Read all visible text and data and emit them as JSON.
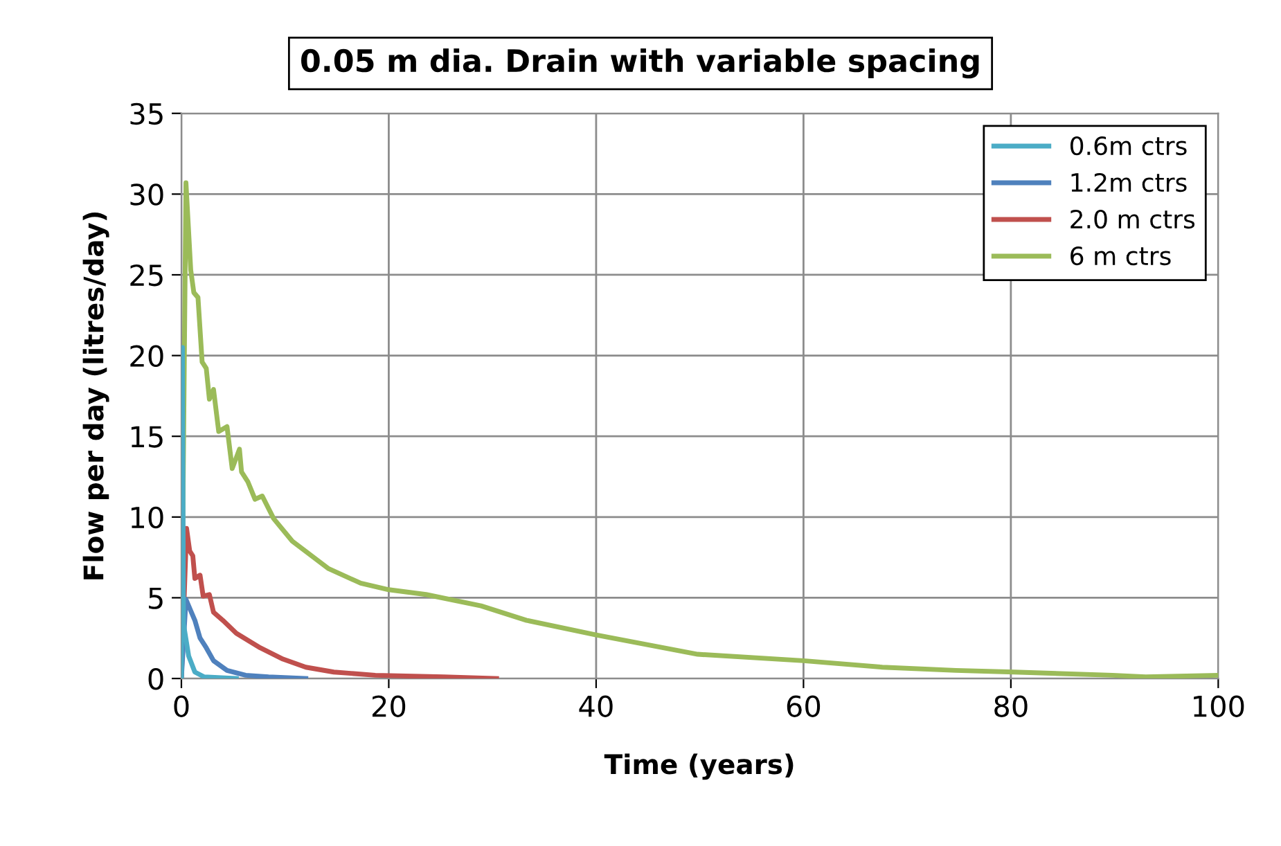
{
  "chart_data": {
    "type": "line",
    "title": "0.05 m dia. Drain with variable spacing",
    "xlabel": "Time (years)",
    "ylabel": "Flow per day (litres/day)",
    "xlim": [
      0,
      100
    ],
    "xticks": [
      0,
      20,
      40,
      60,
      80,
      100
    ],
    "ylim": [
      0,
      35
    ],
    "yticks": [
      0,
      5,
      10,
      15,
      20,
      25,
      30,
      35
    ],
    "grid": true,
    "legend": "top right",
    "marker": "none",
    "line_style": "solid",
    "series": [
      {
        "name": "0.6m ctrs",
        "color": "#4bacc6",
        "x": [
          0,
          0.1,
          0.2,
          0.7,
          1.3,
          2.2,
          5.3
        ],
        "values": [
          0,
          20.5,
          3.4,
          1.4,
          0.4,
          0.1,
          0
        ]
      },
      {
        "name": "1.2m ctrs",
        "color": "#4f81bd",
        "x": [
          0,
          0.44,
          0.9,
          1.3,
          1.8,
          2.4,
          3.1,
          4.4,
          6.2,
          8.4,
          12
        ],
        "values": [
          0,
          4.9,
          4.2,
          3.6,
          2.5,
          1.9,
          1.1,
          0.5,
          0.2,
          0.1,
          0
        ]
      },
      {
        "name": "2.0 m ctrs",
        "color": "#c0504d",
        "x": [
          0,
          0.5,
          0.8,
          1.1,
          1.3,
          1.8,
          2.1,
          2.7,
          3.1,
          4.0,
          5.3,
          7.6,
          9.8,
          12,
          14.7,
          18.7,
          25.3,
          30.4
        ],
        "values": [
          0,
          9.3,
          7.9,
          7.6,
          6.2,
          6.4,
          5.1,
          5.2,
          4.1,
          3.6,
          2.8,
          1.9,
          1.2,
          0.7,
          0.4,
          0.2,
          0.1,
          0
        ]
      },
      {
        "name": "6 m ctrs",
        "color": "#9bbb59",
        "x": [
          0,
          0.44,
          0.9,
          1.2,
          1.6,
          2.0,
          2.4,
          2.7,
          3.1,
          3.6,
          4.4,
          4.9,
          5.6,
          5.8,
          6.4,
          7.1,
          7.8,
          8.9,
          10.7,
          14.2,
          17.3,
          20,
          23.6,
          28.9,
          33.3,
          40,
          49.8,
          60,
          67.6,
          74.7,
          80.3,
          89.8,
          93,
          100
        ],
        "values": [
          0,
          30.7,
          25.3,
          23.9,
          23.6,
          19.6,
          19.2,
          17.3,
          17.9,
          15.3,
          15.6,
          13.0,
          14.2,
          12.8,
          12.2,
          11.1,
          11.3,
          9.9,
          8.5,
          6.8,
          5.9,
          5.5,
          5.2,
          4.5,
          3.6,
          2.7,
          1.5,
          1.1,
          0.7,
          0.5,
          0.4,
          0.2,
          0.1,
          0.2
        ]
      }
    ]
  }
}
